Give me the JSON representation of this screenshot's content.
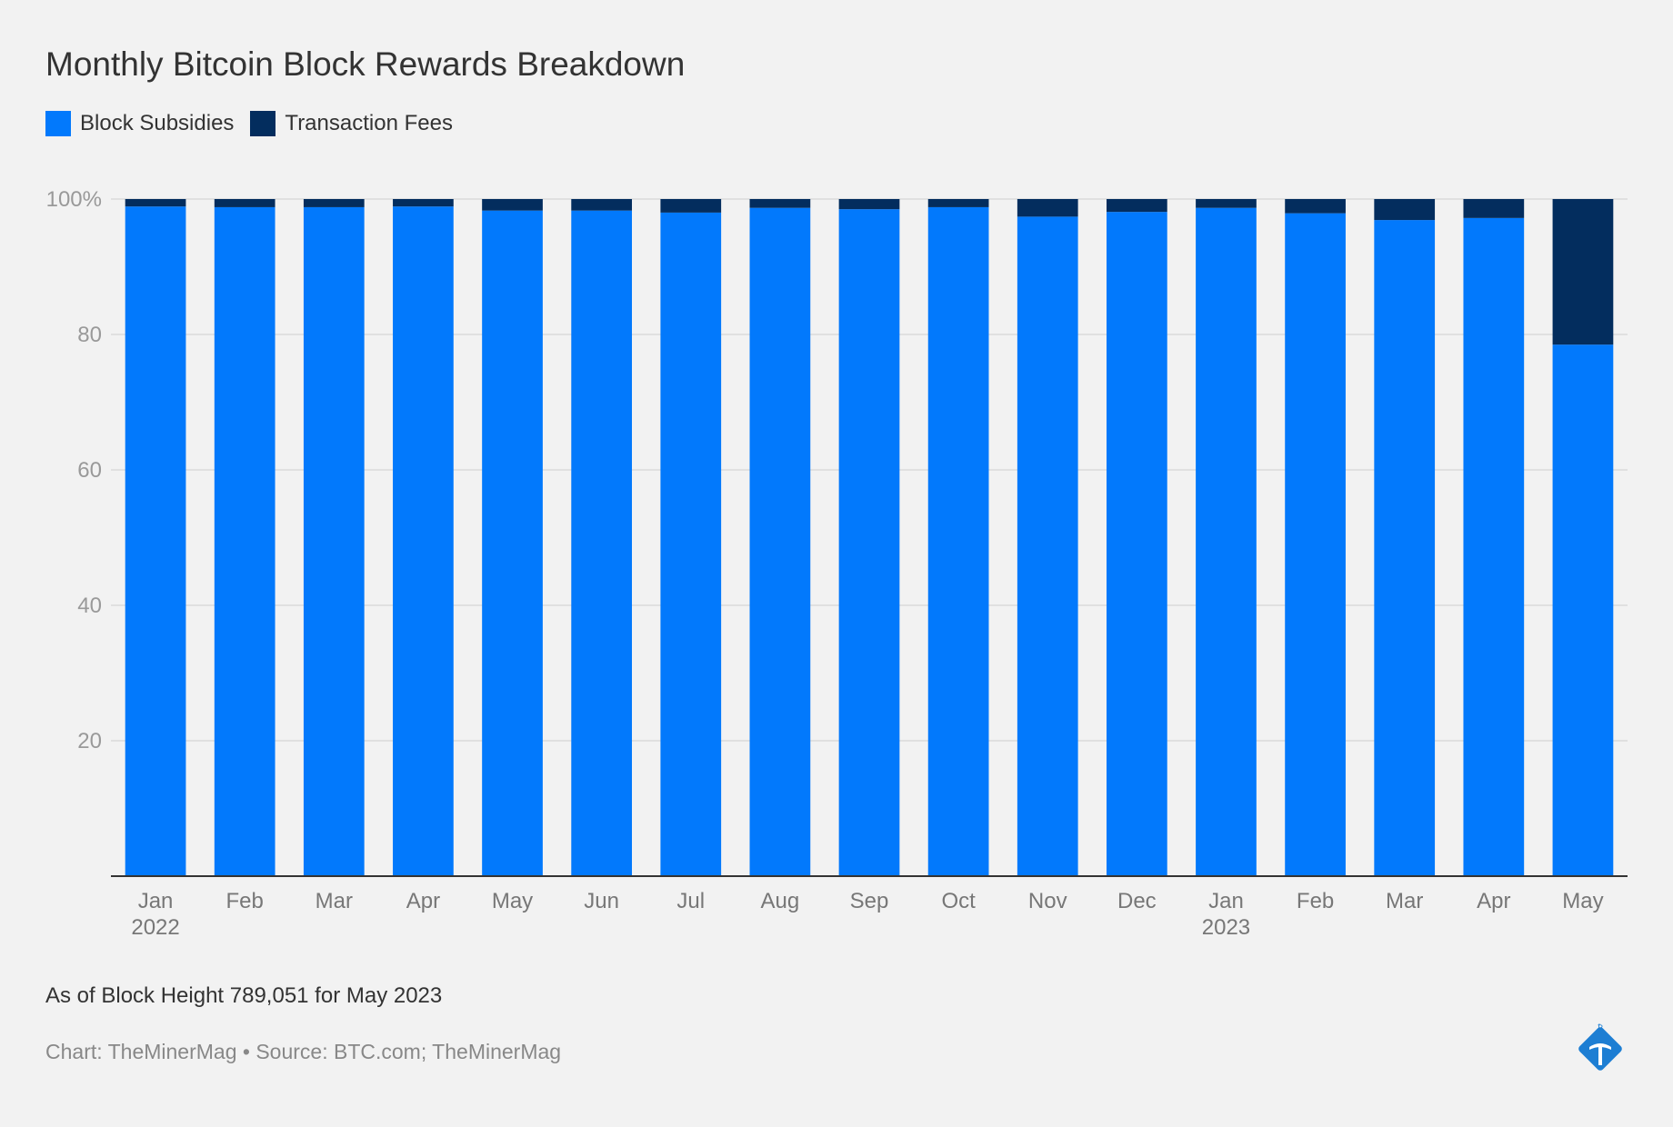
{
  "colors": {
    "subsidy": "#0279fc",
    "fees": "#032d5e",
    "grid": "#d9d9d9",
    "axis": "#333333",
    "logo": "#1d7ed3"
  },
  "header": {
    "title": "Monthly Bitcoin Block Rewards Breakdown"
  },
  "footer": {
    "note": "As of Block Height 789,051 for May 2023",
    "credit": "Chart: TheMinerMag • Source: BTC.com; TheMinerMag",
    "logo_icon": "pickaxe-diamond-icon"
  },
  "chart_data": {
    "type": "bar",
    "stacked": true,
    "title": "Monthly Bitcoin Block Rewards Breakdown",
    "xlabel": "",
    "ylabel": "",
    "ylim": [
      0,
      100
    ],
    "yticks": [
      {
        "value": 20,
        "label": "20"
      },
      {
        "value": 40,
        "label": "40"
      },
      {
        "value": 60,
        "label": "60"
      },
      {
        "value": 80,
        "label": "80"
      },
      {
        "value": 100,
        "label": "100%"
      }
    ],
    "grid": true,
    "legend_position": "top-left",
    "categories": [
      {
        "label": "Jan",
        "sublabel": "2022"
      },
      {
        "label": "Feb",
        "sublabel": ""
      },
      {
        "label": "Mar",
        "sublabel": ""
      },
      {
        "label": "Apr",
        "sublabel": ""
      },
      {
        "label": "May",
        "sublabel": ""
      },
      {
        "label": "Jun",
        "sublabel": ""
      },
      {
        "label": "Jul",
        "sublabel": ""
      },
      {
        "label": "Aug",
        "sublabel": ""
      },
      {
        "label": "Sep",
        "sublabel": ""
      },
      {
        "label": "Oct",
        "sublabel": ""
      },
      {
        "label": "Nov",
        "sublabel": ""
      },
      {
        "label": "Dec",
        "sublabel": ""
      },
      {
        "label": "Jan",
        "sublabel": "2023"
      },
      {
        "label": "Feb",
        "sublabel": ""
      },
      {
        "label": "Mar",
        "sublabel": ""
      },
      {
        "label": "Apr",
        "sublabel": ""
      },
      {
        "label": "May",
        "sublabel": ""
      }
    ],
    "series": [
      {
        "name": "Block Subsidies",
        "values": [
          98.9,
          98.8,
          98.8,
          98.9,
          98.3,
          98.3,
          98.0,
          98.7,
          98.5,
          98.8,
          97.4,
          98.1,
          98.7,
          97.9,
          96.9,
          97.2,
          78.5
        ]
      },
      {
        "name": "Transaction Fees",
        "values": [
          1.1,
          1.2,
          1.2,
          1.1,
          1.7,
          1.7,
          2.0,
          1.3,
          1.5,
          1.2,
          2.6,
          1.9,
          1.3,
          2.1,
          3.1,
          2.8,
          21.5
        ]
      }
    ]
  }
}
